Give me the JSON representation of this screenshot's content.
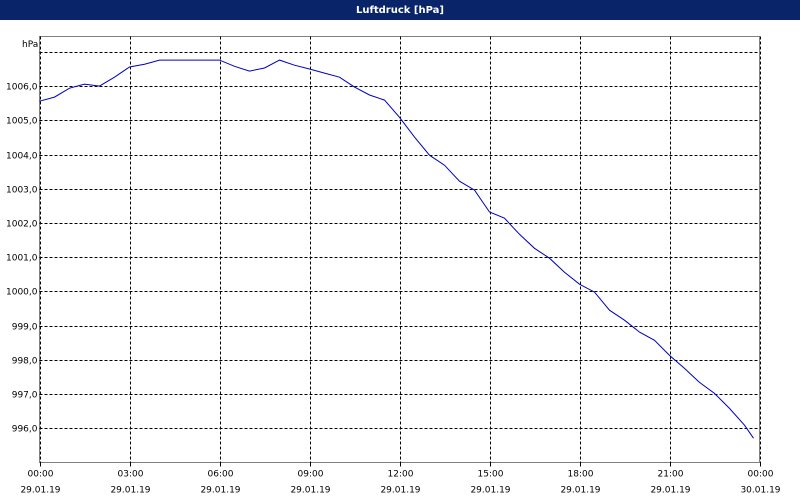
{
  "chart_data": {
    "type": "line",
    "title": "Luftdruck [hPa]",
    "y_label": "hPa",
    "x": [
      0,
      0.5,
      1,
      1.5,
      2,
      2.5,
      3,
      3.5,
      4,
      5,
      6,
      6.5,
      7,
      7.5,
      8,
      8.5,
      9,
      9.5,
      10,
      10.5,
      11,
      11.5,
      12,
      12.5,
      13,
      13.5,
      14,
      14.5,
      15,
      15.5,
      16,
      16.5,
      17,
      17.5,
      18,
      18.5,
      19,
      19.5,
      20,
      20.5,
      21,
      21.5,
      22,
      22.5,
      23,
      23.5,
      23.8
    ],
    "series": [
      {
        "name": "Luftdruck",
        "color": "#0000c0",
        "values": [
          1005.56,
          1005.68,
          1005.94,
          1006.06,
          1006.0,
          1006.26,
          1006.56,
          1006.64,
          1006.76,
          1006.76,
          1006.76,
          1006.58,
          1006.44,
          1006.53,
          1006.76,
          1006.61,
          1006.5,
          1006.38,
          1006.26,
          1005.97,
          1005.74,
          1005.59,
          1005.09,
          1004.51,
          1003.98,
          1003.69,
          1003.22,
          1002.96,
          1002.32,
          1002.14,
          1001.67,
          1001.26,
          1000.97,
          1000.56,
          1000.21,
          999.98,
          999.45,
          999.16,
          998.81,
          998.57,
          998.13,
          997.75,
          997.34,
          997.02,
          996.58,
          996.09,
          995.71
        ]
      }
    ],
    "xlim": [
      0,
      24
    ],
    "xticks": [
      {
        "value": 0,
        "label": [
          "00:00",
          "29.01.19"
        ]
      },
      {
        "value": 3,
        "label": [
          "03:00",
          "29.01.19"
        ]
      },
      {
        "value": 6,
        "label": [
          "06:00",
          "29.01.19"
        ]
      },
      {
        "value": 9,
        "label": [
          "09:00",
          "29.01.19"
        ]
      },
      {
        "value": 12,
        "label": [
          "12:00",
          "29.01.19"
        ]
      },
      {
        "value": 15,
        "label": [
          "15:00",
          "29.01.19"
        ]
      },
      {
        "value": 18,
        "label": [
          "18:00",
          "29.01.19"
        ]
      },
      {
        "value": 21,
        "label": [
          "21:00",
          "29.01.19"
        ]
      },
      {
        "value": 24,
        "label": [
          "00:00",
          "30.01.19"
        ]
      }
    ],
    "ylim": [
      995,
      1007.45
    ],
    "yticks": [
      {
        "value": 996,
        "label": "996,0"
      },
      {
        "value": 997,
        "label": "997,0"
      },
      {
        "value": 998,
        "label": "998,0"
      },
      {
        "value": 999,
        "label": "999,0"
      },
      {
        "value": 1000,
        "label": "1000,0"
      },
      {
        "value": 1001,
        "label": "1001,0"
      },
      {
        "value": 1002,
        "label": "1002,0"
      },
      {
        "value": 1003,
        "label": "1003,0"
      },
      {
        "value": 1004,
        "label": "1004,0"
      },
      {
        "value": 1005,
        "label": "1005,0"
      },
      {
        "value": 1006,
        "label": "1006,0"
      },
      {
        "value": 1007,
        "label": null
      }
    ],
    "grid": true
  }
}
